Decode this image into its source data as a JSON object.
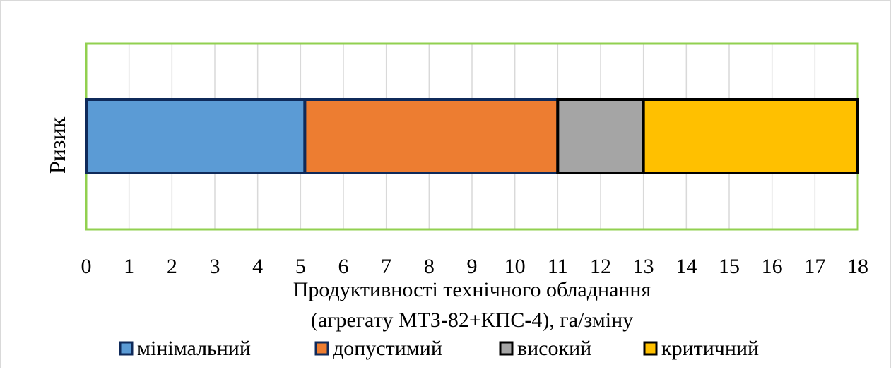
{
  "chart_data": {
    "type": "bar",
    "orientation": "horizontal",
    "stacked": true,
    "categories": [
      "Ризик"
    ],
    "series": [
      {
        "name": "мінімальний",
        "start": 0,
        "end": 5.1,
        "color": "#5B9BD5",
        "border": "#0F2A5A"
      },
      {
        "name": "допустимий",
        "start": 5.1,
        "end": 11,
        "color": "#ED7D31",
        "border": "#0F2A5A"
      },
      {
        "name": "високий",
        "start": 11,
        "end": 13,
        "color": "#A5A5A5",
        "border": "#000000"
      },
      {
        "name": "критичний",
        "start": 13,
        "end": 18,
        "color": "#FFC000",
        "border": "#000000"
      }
    ],
    "xlim": [
      0,
      18
    ],
    "xticks": [
      "0",
      "1",
      "2",
      "3",
      "4",
      "5",
      "6",
      "7",
      "8",
      "9",
      "10",
      "11",
      "12",
      "13",
      "14",
      "15",
      "16",
      "17",
      "18"
    ],
    "xlabel_line1": "Продуктивності технічного обладнання",
    "xlabel_line2": "(агрегату МТЗ-82+КПС-4), га/зміну",
    "ylabel": "Ризик",
    "grid": "vertical",
    "legend_position": "bottom",
    "plot_border_color": "#92D050",
    "grid_color": "#D9D9D9",
    "outer_border_color": "#D9D9D9"
  }
}
